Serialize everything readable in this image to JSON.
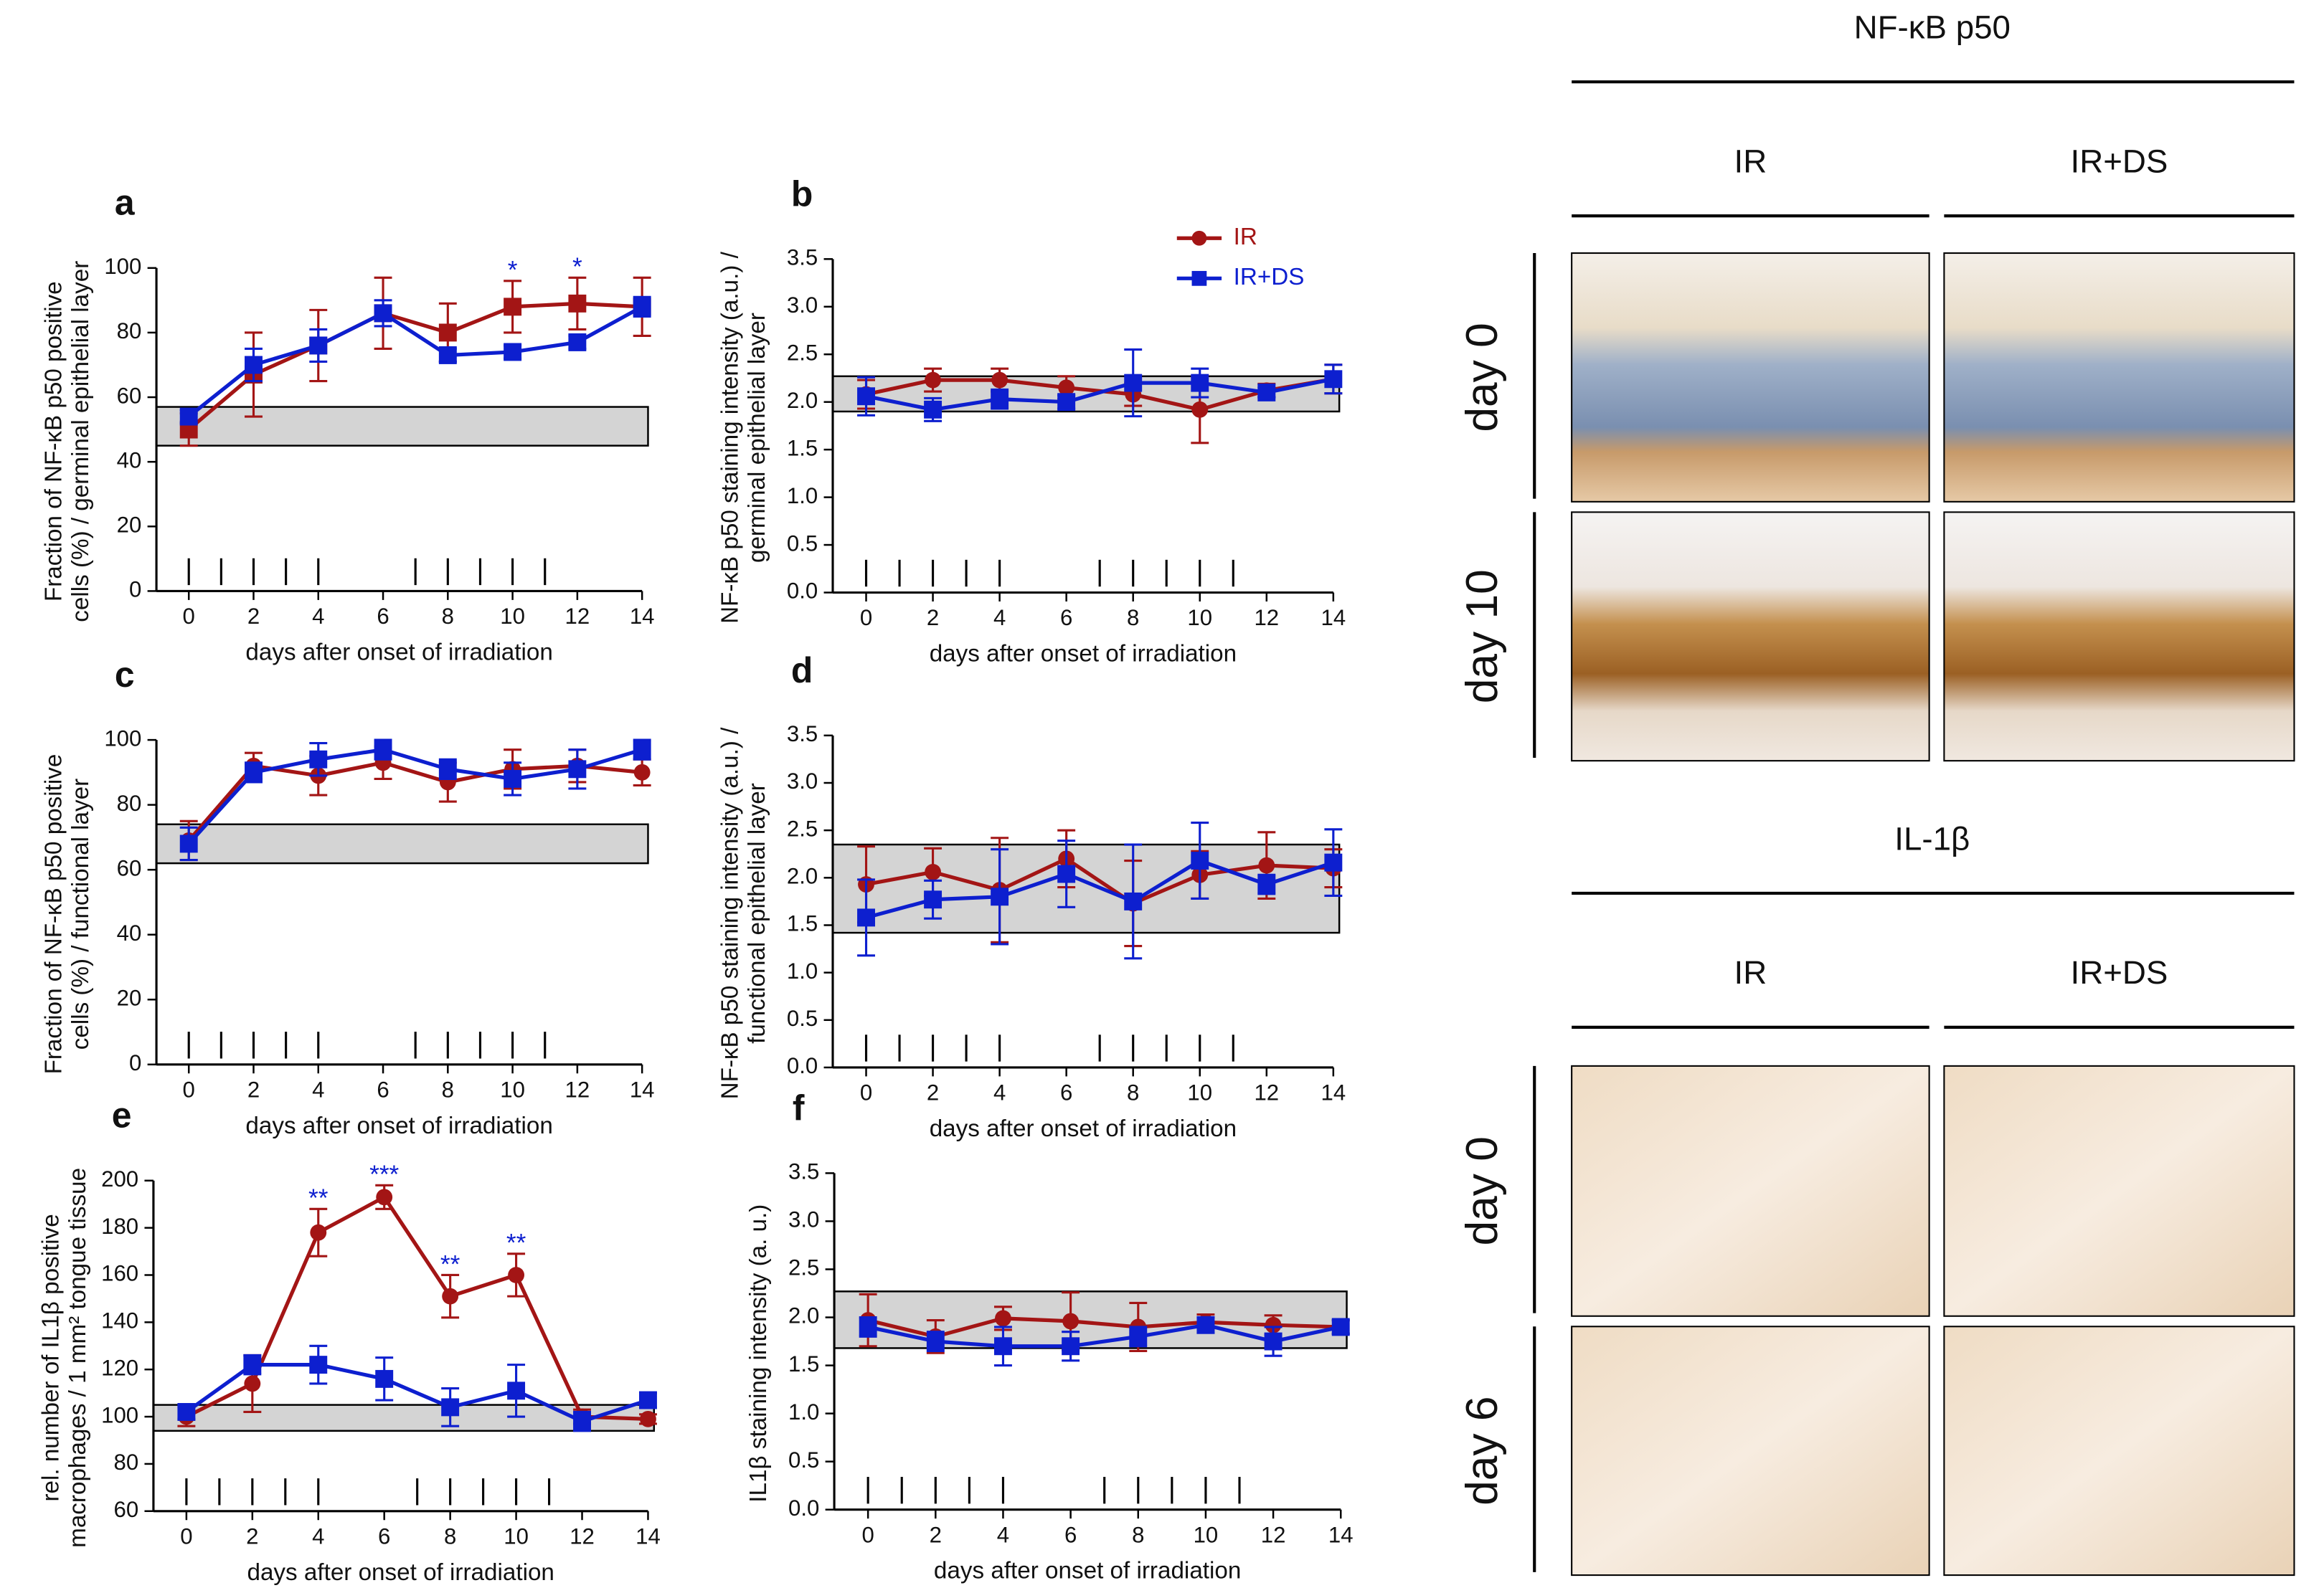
{
  "chart_data": [
    {
      "type": "line",
      "label": "a",
      "ylabel": [
        "Fraction of NF-κB p50 positive",
        "cells (%) / germinal epithelial layer"
      ],
      "xlabel": "days after onset of irradiation",
      "x": [
        0,
        2,
        4,
        6,
        8,
        10,
        12,
        14
      ],
      "xlim": [
        -1,
        14
      ],
      "xticks": [
        0,
        2,
        4,
        6,
        8,
        10,
        12,
        14
      ],
      "ylim": [
        0,
        100
      ],
      "yticks": [
        0,
        20,
        40,
        60,
        80,
        100
      ],
      "band": [
        45,
        57
      ],
      "irradiation_days": [
        0,
        1,
        2,
        3,
        4,
        7,
        8,
        9,
        10,
        11
      ],
      "series": [
        {
          "color": "#a31515",
          "marker": "square",
          "values": [
            50,
            67,
            76,
            86,
            80,
            88,
            89,
            88
          ],
          "errors": [
            5,
            13,
            11,
            11,
            9,
            8,
            8,
            9
          ]
        },
        {
          "color": "#0d1fcf",
          "marker": "square",
          "values": [
            54,
            70,
            76,
            86,
            73,
            74,
            77,
            88
          ],
          "errors": [
            2,
            5,
            5,
            4,
            2,
            2,
            2,
            3
          ]
        }
      ],
      "annotations": [
        {
          "x": 10,
          "text": "*"
        },
        {
          "x": 12,
          "text": "*"
        }
      ]
    },
    {
      "type": "line",
      "label": "b",
      "ylabel": [
        "NF-κB p50 staining intensity (a.u.) /",
        "germinal epithelial layer"
      ],
      "xlabel": "days after onset of irradiation",
      "x": [
        0,
        2,
        4,
        6,
        8,
        10,
        12,
        14
      ],
      "xlim": [
        -1,
        14
      ],
      "xticks": [
        0,
        2,
        4,
        6,
        8,
        10,
        12,
        14
      ],
      "ylim": [
        0,
        3.5
      ],
      "yticks": [
        {
          "value": 0,
          "label": "0.0"
        },
        0.5,
        {
          "value": 1,
          "label": "1.0"
        },
        1.5,
        {
          "value": 2,
          "label": "2.0"
        },
        2.5,
        {
          "value": 3,
          "label": "3.0"
        },
        3.5
      ],
      "band": [
        1.9,
        2.27
      ],
      "irradiation_days": [
        0,
        1,
        2,
        3,
        4,
        7,
        8,
        9,
        10,
        11
      ],
      "series": [
        {
          "name": "IR",
          "color": "#a31515",
          "marker": "circle",
          "values": [
            2.08,
            2.23,
            2.23,
            2.15,
            2.08,
            1.92,
            2.12,
            2.24
          ],
          "errors": [
            0.15,
            0.12,
            0.12,
            0.12,
            0.12,
            0.35,
            0.07,
            0.15
          ]
        },
        {
          "name": "IR+DS",
          "color": "#0d1fcf",
          "marker": "square",
          "values": [
            2.06,
            1.92,
            2.03,
            2.0,
            2.2,
            2.2,
            2.1,
            2.24
          ],
          "errors": [
            0.2,
            0.12,
            0.1,
            0.07,
            0.35,
            0.15,
            0.05,
            0.15
          ]
        }
      ],
      "annotations": []
    },
    {
      "type": "line",
      "label": "c",
      "ylabel": [
        "Fraction of NF-κB p50 positive",
        "cells (%) / functional layer"
      ],
      "xlabel": "days after onset of irradiation",
      "x": [
        0,
        2,
        4,
        6,
        8,
        10,
        12,
        14
      ],
      "xlim": [
        -1,
        14
      ],
      "xticks": [
        0,
        2,
        4,
        6,
        8,
        10,
        12,
        14
      ],
      "ylim": [
        0,
        100
      ],
      "yticks": [
        0,
        20,
        40,
        60,
        80,
        100
      ],
      "band": [
        62,
        74
      ],
      "irradiation_days": [
        0,
        1,
        2,
        3,
        4,
        7,
        8,
        9,
        10,
        11
      ],
      "series": [
        {
          "color": "#a31515",
          "marker": "circle",
          "values": [
            69,
            92,
            89,
            93,
            87,
            91,
            92,
            90
          ],
          "errors": [
            6,
            4,
            6,
            5,
            6,
            6,
            5,
            4
          ]
        },
        {
          "color": "#0d1fcf",
          "marker": "square",
          "values": [
            68,
            90,
            94,
            97,
            91,
            88,
            91,
            97
          ],
          "errors": [
            5,
            3,
            5,
            3,
            3,
            5,
            6,
            3
          ]
        }
      ],
      "annotations": []
    },
    {
      "type": "line",
      "label": "d",
      "ylabel": [
        "NF-κB p50 staining intensity (a.u.) /",
        "functional epithelial layer"
      ],
      "xlabel": "days after onset of irradiation",
      "x": [
        0,
        2,
        4,
        6,
        8,
        10,
        12,
        14
      ],
      "xlim": [
        -1,
        14
      ],
      "xticks": [
        0,
        2,
        4,
        6,
        8,
        10,
        12,
        14
      ],
      "ylim": [
        0,
        3.5
      ],
      "yticks": [
        {
          "value": 0,
          "label": "0.0"
        },
        0.5,
        {
          "value": 1,
          "label": "1.0"
        },
        1.5,
        {
          "value": 2,
          "label": "2.0"
        },
        2.5,
        {
          "value": 3,
          "label": "3.0"
        },
        3.5
      ],
      "band": [
        1.42,
        2.35
      ],
      "irradiation_days": [
        0,
        1,
        2,
        3,
        4,
        7,
        8,
        9,
        10,
        11
      ],
      "series": [
        {
          "color": "#a31515",
          "marker": "circle",
          "values": [
            1.93,
            2.06,
            1.87,
            2.2,
            1.73,
            2.03,
            2.13,
            2.1
          ],
          "errors": [
            0.4,
            0.25,
            0.55,
            0.3,
            0.45,
            0.25,
            0.35,
            0.2
          ]
        },
        {
          "color": "#0d1fcf",
          "marker": "square",
          "values": [
            1.58,
            1.77,
            1.8,
            2.04,
            1.75,
            2.18,
            1.93,
            2.16
          ],
          "errors": [
            0.4,
            0.2,
            0.5,
            0.35,
            0.6,
            0.4,
            0.1,
            0.35
          ]
        }
      ],
      "annotations": []
    },
    {
      "type": "line",
      "label": "e",
      "ylabel": [
        "rel. number of  IL1β positive",
        "macrophages  / 1 mm² tongue tissue"
      ],
      "xlabel": "days after onset of irradiation",
      "x": [
        0,
        2,
        4,
        6,
        8,
        10,
        12,
        14
      ],
      "xlim": [
        -1,
        14
      ],
      "xticks": [
        0,
        2,
        4,
        6,
        8,
        10,
        12,
        14
      ],
      "ylim": [
        60,
        200
      ],
      "yticks": [
        60,
        80,
        100,
        120,
        140,
        160,
        180,
        200
      ],
      "band": [
        94,
        105
      ],
      "irradiation_days": [
        0,
        1,
        2,
        3,
        4,
        7,
        8,
        9,
        10,
        11
      ],
      "series": [
        {
          "color": "#a31515",
          "marker": "circle",
          "values": [
            100,
            114,
            178,
            193,
            151,
            160,
            100,
            99
          ],
          "errors": [
            4,
            12,
            10,
            5,
            9,
            9,
            3,
            2
          ]
        },
        {
          "color": "#0d1fcf",
          "marker": "square",
          "values": [
            102,
            122,
            122,
            116,
            104,
            111,
            98,
            107
          ],
          "errors": [
            3,
            4,
            8,
            9,
            8,
            11,
            4,
            3
          ]
        }
      ],
      "annotations": [
        {
          "x": 4,
          "text": "**"
        },
        {
          "x": 6,
          "text": "***"
        },
        {
          "x": 8,
          "text": "**"
        },
        {
          "x": 10,
          "text": "**"
        }
      ]
    },
    {
      "type": "line",
      "label": "f",
      "ylabel": [
        "IL1β staining intensity (a. u.)"
      ],
      "xlabel": "days after onset of irradiation",
      "x": [
        0,
        2,
        4,
        6,
        8,
        10,
        12,
        14
      ],
      "xlim": [
        -1,
        14
      ],
      "xticks": [
        0,
        2,
        4,
        6,
        8,
        10,
        12,
        14
      ],
      "ylim": [
        0,
        3.5
      ],
      "yticks": [
        {
          "value": 0,
          "label": "0.0"
        },
        0.5,
        {
          "value": 1,
          "label": "1.0"
        },
        1.5,
        {
          "value": 2,
          "label": "2.0"
        },
        2.5,
        {
          "value": 3,
          "label": "3.0"
        },
        3.5
      ],
      "band": [
        1.68,
        2.27
      ],
      "irradiation_days": [
        0,
        1,
        2,
        3,
        4,
        7,
        8,
        9,
        10,
        11
      ],
      "series": [
        {
          "color": "#a31515",
          "marker": "circle",
          "values": [
            1.97,
            1.8,
            1.99,
            1.96,
            1.9,
            1.95,
            1.92,
            1.9
          ],
          "errors": [
            0.27,
            0.17,
            0.12,
            0.3,
            0.25,
            0.08,
            0.1,
            0.07
          ]
        },
        {
          "color": "#0d1fcf",
          "marker": "square",
          "values": [
            1.9,
            1.75,
            1.7,
            1.7,
            1.8,
            1.92,
            1.75,
            1.9
          ],
          "errors": [
            0.1,
            0.1,
            0.2,
            0.15,
            0.1,
            0.08,
            0.15,
            0.07
          ]
        }
      ],
      "annotations": []
    }
  ],
  "micrographs": [
    {
      "title": "NF-κB p50",
      "columns": [
        "IR",
        "IR+DS"
      ],
      "rows": [
        "day 0",
        "day 10"
      ]
    },
    {
      "title": "IL-1β",
      "columns": [
        "IR",
        "IR+DS"
      ],
      "rows": [
        "day 0",
        "day 6"
      ]
    }
  ]
}
